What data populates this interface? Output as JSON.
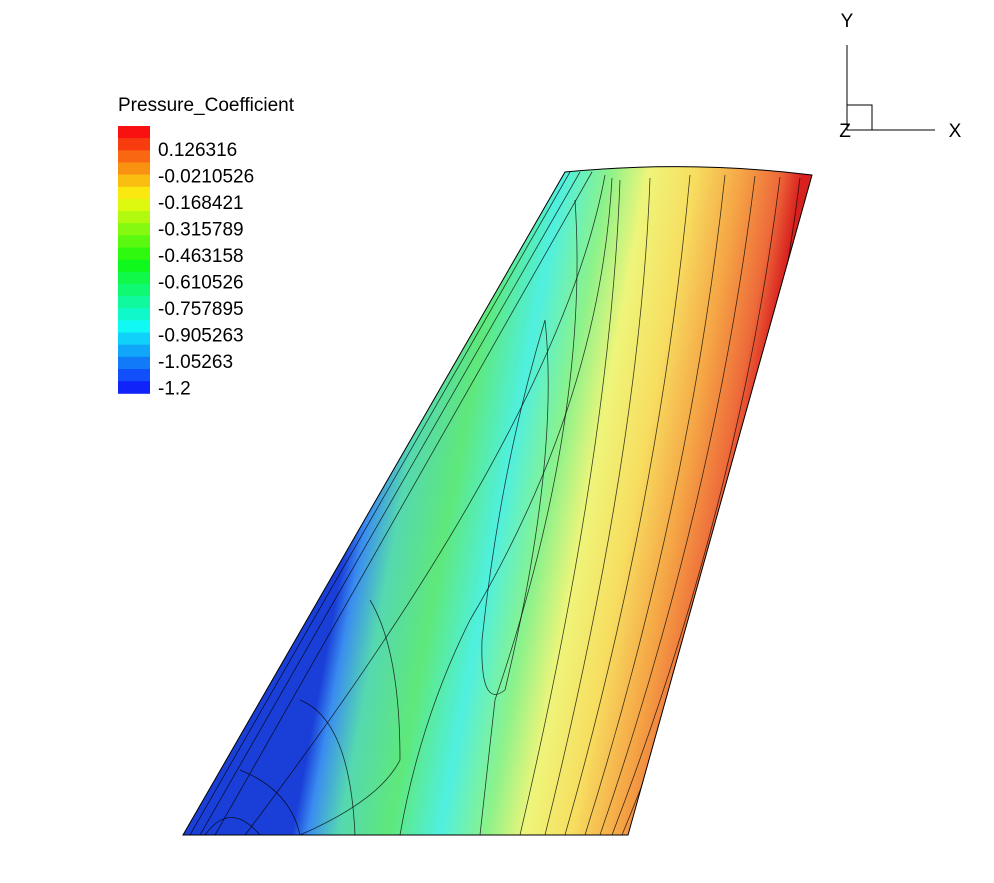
{
  "legend": {
    "title": "Pressure_Coefficient",
    "labels": [
      "0.126316",
      "-0.0210526",
      "-0.168421",
      "-0.315789",
      "-0.463158",
      "-0.610526",
      "-0.757895",
      "-0.905263",
      "-1.05263",
      "-1.2"
    ]
  },
  "axes": {
    "x": "X",
    "y": "Y",
    "z": "Z"
  }
}
